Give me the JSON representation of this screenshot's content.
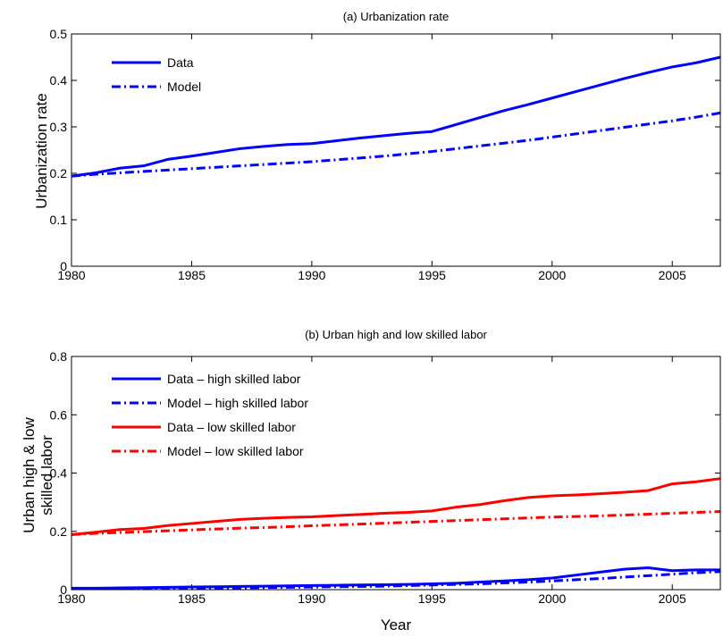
{
  "chart_data": [
    {
      "type": "line",
      "title": "(a) Urbanization rate",
      "xlabel": "",
      "ylabel": "Urbanization rate",
      "xlim": [
        1980,
        2007
      ],
      "ylim": [
        0,
        0.5
      ],
      "xticks": [
        1980,
        1985,
        1990,
        1995,
        2000,
        2005
      ],
      "xtick_labels": [
        "1980",
        "1985",
        "1990",
        "1995",
        "2000",
        "2005"
      ],
      "yticks": [
        0,
        0.1,
        0.2,
        0.3,
        0.4,
        0.5
      ],
      "ytick_labels": [
        "0",
        "0.1",
        "0.2",
        "0.3",
        "0.4",
        "0.5"
      ],
      "grid": false,
      "legend_position": "top-left",
      "x": [
        1980,
        1981,
        1982,
        1983,
        1984,
        1985,
        1986,
        1987,
        1988,
        1989,
        1990,
        1991,
        1992,
        1993,
        1994,
        1995,
        1996,
        1997,
        1998,
        1999,
        2000,
        2001,
        2002,
        2003,
        2004,
        2005,
        2006,
        2007
      ],
      "series": [
        {
          "name": "Data",
          "color": "#0000ff",
          "style": "solid",
          "values": [
            0.194,
            0.201,
            0.211,
            0.216,
            0.23,
            0.237,
            0.245,
            0.253,
            0.258,
            0.262,
            0.264,
            0.27,
            0.276,
            0.281,
            0.286,
            0.29,
            0.305,
            0.32,
            0.335,
            0.348,
            0.362,
            0.376,
            0.39,
            0.404,
            0.417,
            0.429,
            0.438,
            0.45
          ]
        },
        {
          "name": "Model",
          "color": "#0000ff",
          "style": "dashdot",
          "values": [
            0.194,
            0.198,
            0.201,
            0.204,
            0.207,
            0.21,
            0.213,
            0.216,
            0.219,
            0.222,
            0.225,
            0.229,
            0.233,
            0.237,
            0.242,
            0.247,
            0.253,
            0.259,
            0.265,
            0.271,
            0.278,
            0.285,
            0.292,
            0.299,
            0.306,
            0.313,
            0.321,
            0.33
          ]
        }
      ]
    },
    {
      "type": "line",
      "title": "(b) Urban high and low skilled labor",
      "xlabel": "Year",
      "ylabel": [
        "Urban high & low",
        "skilled labor"
      ],
      "xlim": [
        1980,
        2007
      ],
      "ylim": [
        0,
        0.8
      ],
      "xticks": [
        1980,
        1985,
        1990,
        1995,
        2000,
        2005
      ],
      "xtick_labels": [
        "1980",
        "1985",
        "1990",
        "1995",
        "2000",
        "2005"
      ],
      "yticks": [
        0,
        0.2,
        0.4,
        0.6,
        0.8
      ],
      "ytick_labels": [
        "0",
        "0.2",
        "0.4",
        "0.6",
        "0.8"
      ],
      "grid": false,
      "legend_position": "top-left",
      "x": [
        1980,
        1981,
        1982,
        1983,
        1984,
        1985,
        1986,
        1987,
        1988,
        1989,
        1990,
        1991,
        1992,
        1993,
        1994,
        1995,
        1996,
        1997,
        1998,
        1999,
        2000,
        2001,
        2002,
        2003,
        2004,
        2005,
        2006,
        2007
      ],
      "series": [
        {
          "name": "Data – high skilled labor",
          "color": "#0000ff",
          "style": "solid",
          "values": [
            0.005,
            0.005,
            0.006,
            0.007,
            0.008,
            0.009,
            0.01,
            0.011,
            0.012,
            0.013,
            0.014,
            0.015,
            0.016,
            0.017,
            0.018,
            0.02,
            0.022,
            0.026,
            0.03,
            0.034,
            0.04,
            0.05,
            0.06,
            0.07,
            0.075,
            0.065,
            0.068,
            0.068
          ]
        },
        {
          "name": "Model – high skilled labor",
          "color": "#0000ff",
          "style": "dashdot",
          "values": [
            0.003,
            0.003,
            0.003,
            0.004,
            0.004,
            0.005,
            0.005,
            0.006,
            0.007,
            0.008,
            0.009,
            0.01,
            0.011,
            0.012,
            0.014,
            0.016,
            0.018,
            0.02,
            0.023,
            0.026,
            0.03,
            0.034,
            0.038,
            0.043,
            0.048,
            0.053,
            0.058,
            0.062
          ]
        },
        {
          "name": "Data – low skilled labor",
          "color": "#ff0000",
          "style": "solid",
          "values": [
            0.189,
            0.197,
            0.206,
            0.21,
            0.22,
            0.227,
            0.234,
            0.241,
            0.245,
            0.248,
            0.25,
            0.254,
            0.258,
            0.262,
            0.265,
            0.27,
            0.283,
            0.292,
            0.305,
            0.316,
            0.322,
            0.325,
            0.329,
            0.334,
            0.34,
            0.363,
            0.37,
            0.381
          ]
        },
        {
          "name": "Model – low skilled labor",
          "color": "#ff0000",
          "style": "dashdot",
          "values": [
            0.189,
            0.193,
            0.196,
            0.199,
            0.202,
            0.205,
            0.208,
            0.211,
            0.213,
            0.216,
            0.219,
            0.222,
            0.225,
            0.228,
            0.231,
            0.234,
            0.237,
            0.24,
            0.243,
            0.246,
            0.249,
            0.251,
            0.253,
            0.256,
            0.259,
            0.262,
            0.265,
            0.268
          ]
        }
      ]
    }
  ]
}
